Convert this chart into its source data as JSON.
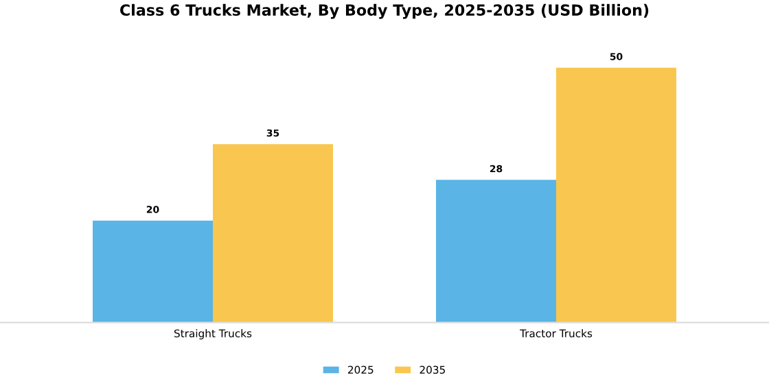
{
  "chart_data": {
    "type": "bar",
    "title": "Class 6 Trucks Market, By Body Type, 2025-2035 (USD Billion)",
    "categories": [
      "Straight Trucks",
      "Tractor Trucks"
    ],
    "series": [
      {
        "name": "2025",
        "color": "#5ab4e5",
        "values": [
          20,
          28
        ]
      },
      {
        "name": "2035",
        "color": "#f9c74f",
        "values": [
          35,
          50
        ]
      }
    ],
    "data_labels": true,
    "legend": "bottom",
    "grid": false,
    "tick_labels": "x"
  }
}
